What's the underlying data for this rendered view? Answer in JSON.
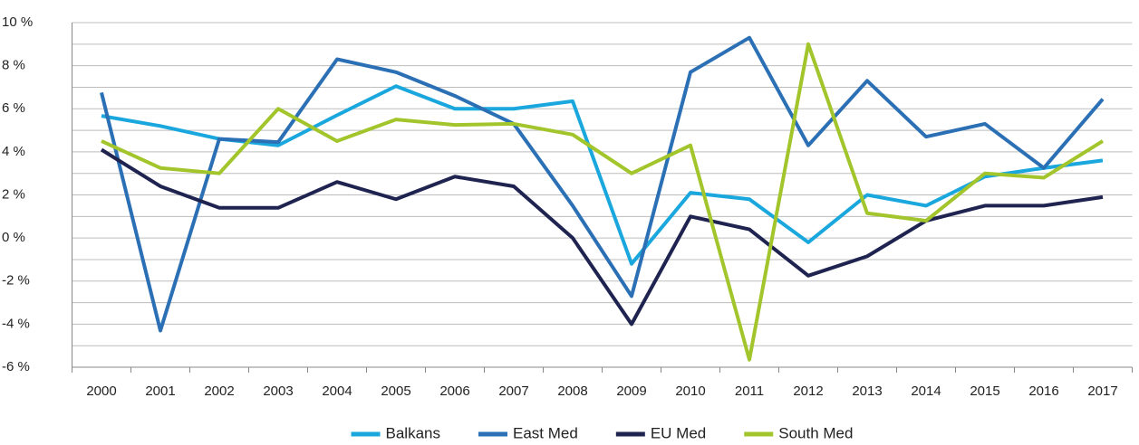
{
  "chart_data": {
    "type": "line",
    "categories": [
      "2000",
      "2001",
      "2002",
      "2003",
      "2004",
      "2005",
      "2006",
      "2007",
      "2008",
      "2009",
      "2010",
      "2011",
      "2012",
      "2013",
      "2014",
      "2015",
      "2016",
      "2017"
    ],
    "series": [
      {
        "name": "Balkans",
        "color": "#1aa7dd",
        "values": [
          5.67,
          5.2,
          4.6,
          4.3,
          5.7,
          7.05,
          6.0,
          6.0,
          6.35,
          -1.2,
          2.1,
          1.8,
          -0.2,
          2.0,
          1.5,
          2.85,
          3.25,
          3.6
        ]
      },
      {
        "name": "East Med",
        "color": "#2b6fb5",
        "values": [
          6.75,
          -4.3,
          4.6,
          4.45,
          8.3,
          7.7,
          6.6,
          5.3,
          1.5,
          -2.7,
          7.7,
          9.3,
          4.3,
          7.3,
          4.7,
          5.3,
          3.25,
          6.45
        ]
      },
      {
        "name": "EU Med",
        "color": "#1f2350",
        "values": [
          4.1,
          2.4,
          1.4,
          1.4,
          2.6,
          1.8,
          2.85,
          2.4,
          0,
          -4.0,
          1.0,
          0.4,
          -1.75,
          -0.85,
          0.8,
          1.5,
          1.5,
          1.9
        ]
      },
      {
        "name": "South Med",
        "color": "#a3c52c",
        "values": [
          4.5,
          3.25,
          3.0,
          6.0,
          4.5,
          5.5,
          5.25,
          5.3,
          4.8,
          3.0,
          4.3,
          -5.65,
          9.0,
          1.15,
          0.8,
          3.0,
          2.8,
          4.5
        ]
      }
    ],
    "ylim": [
      -6,
      10
    ],
    "yticks": [
      {
        "value": -6,
        "label": "-6 %"
      },
      {
        "value": -4,
        "label": "-4 %"
      },
      {
        "value": -2,
        "label": "-2 %"
      },
      {
        "value": 0,
        "label": "0 %"
      },
      {
        "value": 2,
        "label": "2 %"
      },
      {
        "value": 4,
        "label": "4 %"
      },
      {
        "value": 6,
        "label": "6 %"
      },
      {
        "value": 8,
        "label": "8 %"
      },
      {
        "value": 10,
        "label": "10 %"
      }
    ],
    "minor_yticks": [
      -5,
      -3,
      -1,
      1,
      3,
      5,
      7,
      9
    ],
    "grid": true,
    "legend": "bottom"
  }
}
